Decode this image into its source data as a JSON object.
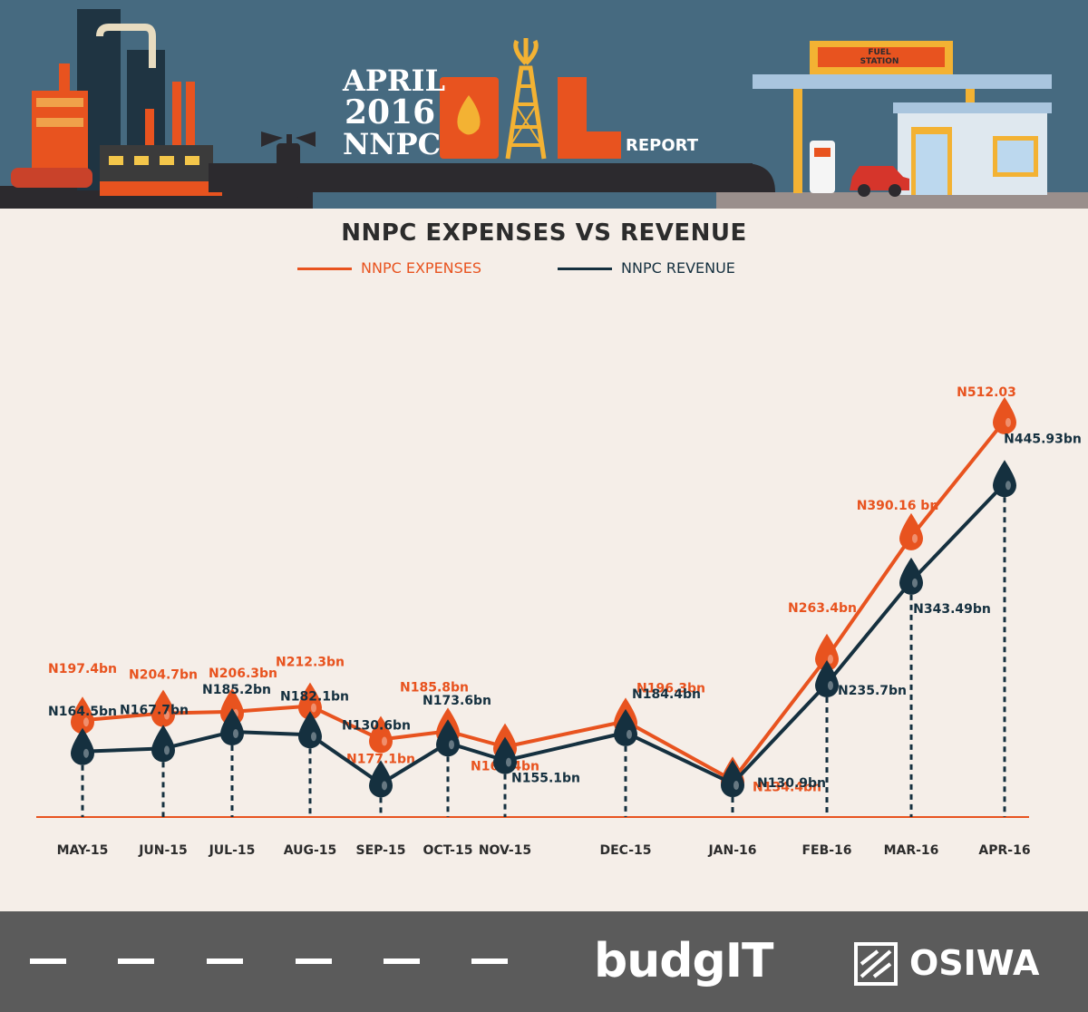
{
  "header": {
    "month": "APRIL",
    "year": "2016",
    "org": "NNPC",
    "report_word": "REPORT",
    "station_sign_line1": "FUEL",
    "station_sign_line2": "STATION"
  },
  "chart_data": {
    "type": "line",
    "title": "NNPC EXPENSES VS REVENUE",
    "categories": [
      "MAY-15",
      "JUN-15",
      "JUL-15",
      "AUG-15",
      "SEP-15",
      "OCT-15",
      "NOV-15",
      "DEC-15",
      "JAN-16",
      "FEB-16",
      "MAR-16",
      "APR-16"
    ],
    "series": [
      {
        "name": "NNPC EXPENSES",
        "color": "#e8531f",
        "values": [
          197.4,
          204.7,
          206.3,
          212.3,
          177.1,
          185.8,
          169.4,
          196.3,
          134.4,
          263.4,
          390.16,
          512.03
        ],
        "labels": [
          "N197.4bn",
          "N204.7bn",
          "N206.3bn",
          "N212.3bn",
          "N177.1bn",
          "N185.8bn",
          "N169.4bn",
          "N196.3bn",
          "N134.4bn",
          "N263.4bn",
          "N390.16 bn",
          "N512.03"
        ]
      },
      {
        "name": "NNPC REVENUE",
        "color": "#15303f",
        "values": [
          164.5,
          167.7,
          185.2,
          182.1,
          130.6,
          173.6,
          155.1,
          184.4,
          130.9,
          235.7,
          343.49,
          445.93
        ],
        "labels": [
          "N164.5bn",
          "N167.7bn",
          "N185.2bn",
          "N182.1bn",
          "N130.6bn",
          "N173.6bn",
          "N155.1bn",
          "N184.4bn",
          "N130.9bn",
          "N235.7bn",
          "N343.49bn",
          "N445.93bn"
        ]
      }
    ],
    "legend_position": "top-center",
    "grid": false
  },
  "footer": {
    "logo1": "budgIT",
    "logo2": "OSIWA"
  }
}
